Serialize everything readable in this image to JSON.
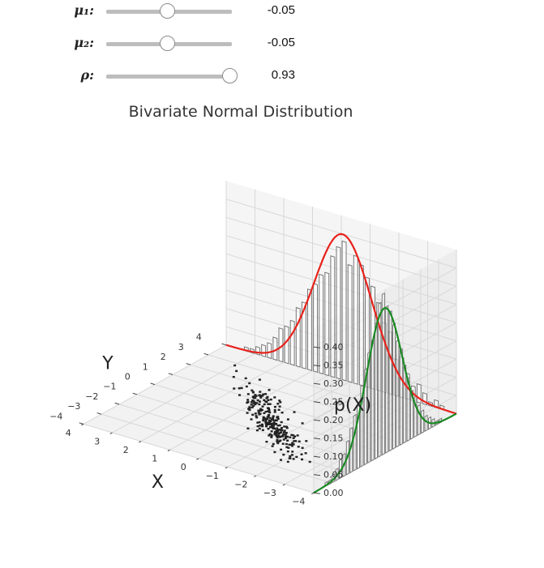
{
  "sliders": [
    {
      "label": "μ₁:",
      "value": -0.05,
      "display": "-0.05",
      "min": -3,
      "max": 3
    },
    {
      "label": "μ₂:",
      "value": -0.05,
      "display": "-0.05",
      "min": -3,
      "max": 3
    },
    {
      "label": "ρ:",
      "value": 0.93,
      "display": "0.93",
      "min": -0.95,
      "max": 0.95
    }
  ],
  "chart_data": {
    "type": "3d-histogram",
    "title": "Bivariate Normal Distribution",
    "xlabel": "X",
    "ylabel": "Y",
    "zlabel": "p(X)",
    "xlim": [
      -4,
      4
    ],
    "ylim": [
      -4,
      4
    ],
    "zlim": [
      0,
      0.45
    ],
    "x_ticks": [
      "−4",
      "−3",
      "−2",
      "−1",
      "0",
      "1",
      "2",
      "3",
      "4"
    ],
    "y_ticks": [
      "−4",
      "−3",
      "−2",
      "−1",
      "0",
      "1",
      "2",
      "3",
      "4"
    ],
    "z_ticks": [
      "0.00",
      "0.05",
      "0.10",
      "0.15",
      "0.20",
      "0.25",
      "0.30",
      "0.35",
      "0.40"
    ],
    "grid": true,
    "series": [
      {
        "name": "",
        "kind": "pdf-curve",
        "axis": "x",
        "color": "#e8221b",
        "mean": -0.05,
        "sd": 1.0
      },
      {
        "name": "",
        "kind": "pdf-curve",
        "axis": "y",
        "color": "#1a8a22",
        "mean": -0.05,
        "sd": 1.0
      },
      {
        "name": "",
        "kind": "histogram",
        "axis": "x",
        "bin_width": 0.2,
        "bins_start": -4.0,
        "heights": [
          0.0,
          0.0,
          0.01,
          0.02,
          0.01,
          0.03,
          0.05,
          0.04,
          0.07,
          0.11,
          0.1,
          0.17,
          0.19,
          0.24,
          0.28,
          0.3,
          0.33,
          0.35,
          0.32,
          0.38,
          0.36,
          0.33,
          0.28,
          0.27,
          0.24,
          0.22,
          0.18,
          0.16,
          0.12,
          0.1,
          0.09,
          0.06,
          0.04,
          0.03,
          0.02,
          0.01,
          0.01,
          0.0,
          0.0,
          0.0
        ]
      },
      {
        "name": "",
        "kind": "histogram",
        "axis": "y",
        "bin_width": 0.2,
        "bins_start": -4.0,
        "heights": [
          0.0,
          0.0,
          0.0,
          0.01,
          0.01,
          0.02,
          0.03,
          0.05,
          0.06,
          0.09,
          0.12,
          0.15,
          0.17,
          0.22,
          0.26,
          0.3,
          0.33,
          0.37,
          0.42,
          0.44,
          0.4,
          0.38,
          0.34,
          0.29,
          0.26,
          0.21,
          0.17,
          0.13,
          0.11,
          0.08,
          0.06,
          0.04,
          0.03,
          0.02,
          0.01,
          0.01,
          0.0,
          0.0,
          0.0,
          0.0
        ]
      },
      {
        "name": "",
        "kind": "scatter",
        "n": 260,
        "rho": 0.93,
        "seed": 7
      }
    ]
  }
}
